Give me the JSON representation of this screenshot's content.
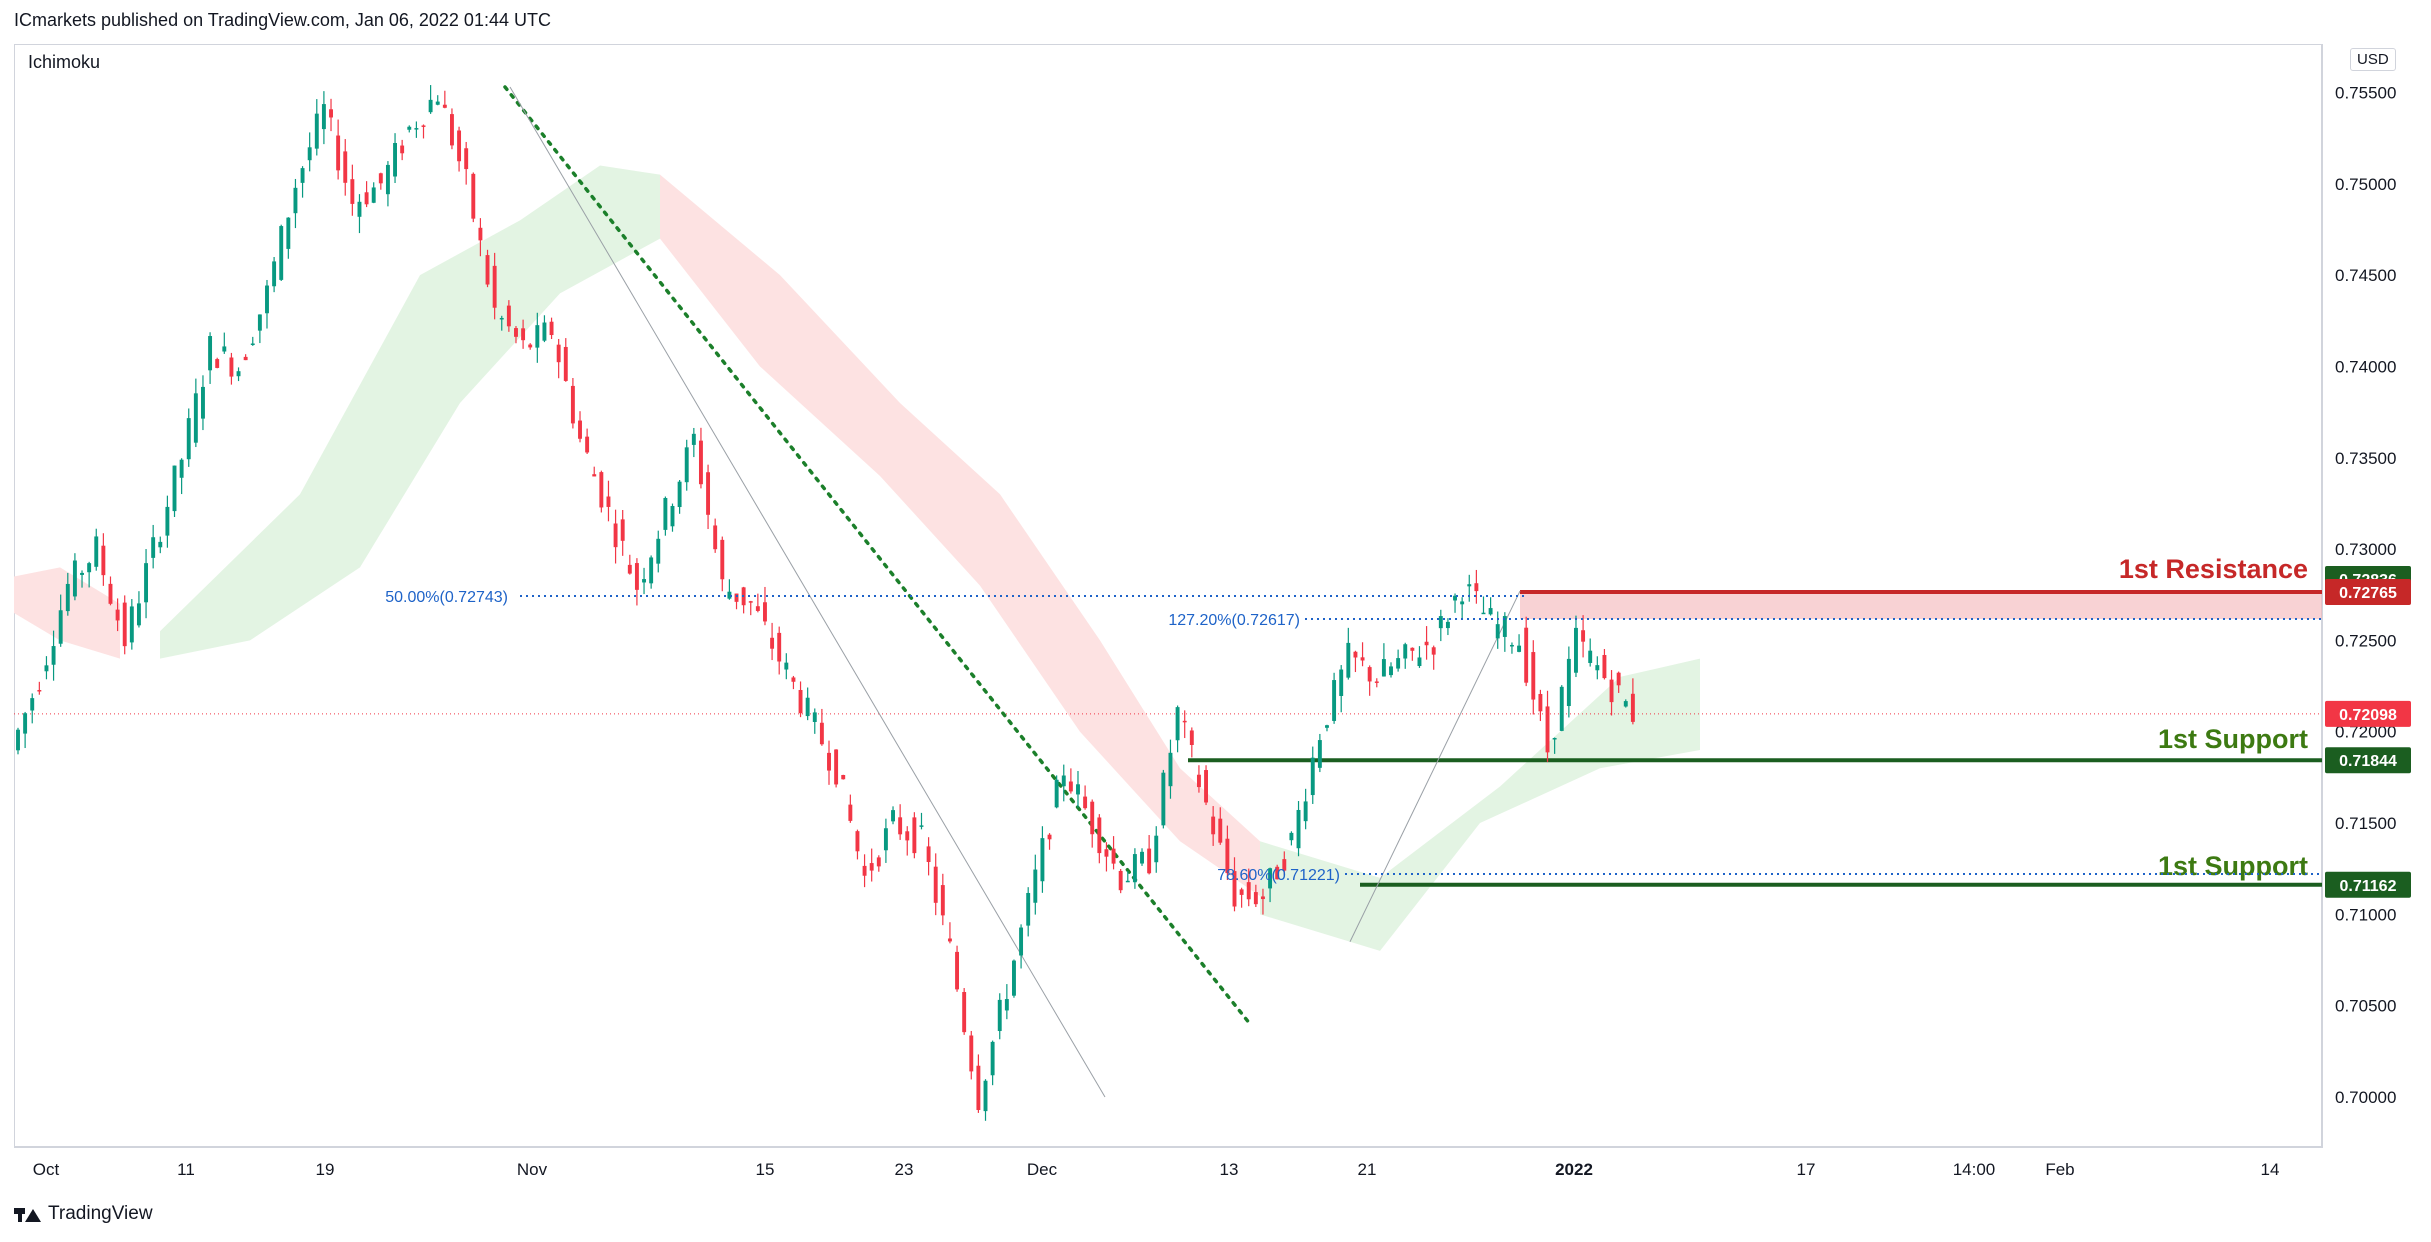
{
  "header": {
    "text": "ICmarkets published on TradingView.com, Jan 06, 2022 01:44 UTC"
  },
  "indicator": {
    "name": "Ichimoku"
  },
  "currency": "USD",
  "footer": {
    "brand": "TradingView",
    "logo_icon": "tradingview-logo-icon"
  },
  "colors": {
    "up": "#089981",
    "down": "#f23645",
    "ichimoku_bull": "#e3f4e3",
    "ichimoku_bear": "#fde2e2",
    "resistance": "#c62828",
    "support": "#1b5e20",
    "fib": "#1e63c8",
    "trend": "#1b7f2a",
    "current_price": "#f23645"
  },
  "chart_data": {
    "type": "candlestick",
    "symbol_currency": "USD",
    "ylim": [
      0.6995,
      0.756
    ],
    "y_ticks": [
      {
        "value": 0.755,
        "label": "0.75500"
      },
      {
        "value": 0.75,
        "label": "0.75000"
      },
      {
        "value": 0.745,
        "label": "0.74500"
      },
      {
        "value": 0.74,
        "label": "0.74000"
      },
      {
        "value": 0.735,
        "label": "0.73500"
      },
      {
        "value": 0.73,
        "label": "0.73000"
      },
      {
        "value": 0.725,
        "label": "0.72500"
      },
      {
        "value": 0.72,
        "label": "0.72000"
      },
      {
        "value": 0.715,
        "label": "0.71500"
      },
      {
        "value": 0.71,
        "label": "0.71000"
      },
      {
        "value": 0.705,
        "label": "0.70500"
      },
      {
        "value": 0.7,
        "label": "0.70000"
      }
    ],
    "x_ticks": [
      {
        "label": "Oct",
        "bold": false
      },
      {
        "label": "11",
        "bold": false
      },
      {
        "label": "19",
        "bold": false
      },
      {
        "label": "Nov",
        "bold": false
      },
      {
        "label": "15",
        "bold": false
      },
      {
        "label": "23",
        "bold": false
      },
      {
        "label": "Dec",
        "bold": false
      },
      {
        "label": "13",
        "bold": false
      },
      {
        "label": "21",
        "bold": false
      },
      {
        "label": "2022",
        "bold": true
      },
      {
        "label": "17",
        "bold": false
      },
      {
        "label": "14:00",
        "bold": false
      },
      {
        "label": "Feb",
        "bold": false
      },
      {
        "label": "14",
        "bold": false
      }
    ],
    "price_path": [
      [
        0.718,
        0.719
      ],
      [
        0.72,
        0.723
      ],
      [
        0.726,
        0.728
      ],
      [
        0.729,
        0.73
      ],
      [
        0.727,
        0.725
      ],
      [
        0.724,
        0.73
      ],
      [
        0.732,
        0.735
      ],
      [
        0.738,
        0.741
      ],
      [
        0.742,
        0.74
      ],
      [
        0.739,
        0.744
      ],
      [
        0.747,
        0.75
      ],
      [
        0.752,
        0.754
      ],
      [
        0.751,
        0.749
      ],
      [
        0.747,
        0.75
      ],
      [
        0.751,
        0.753
      ],
      [
        0.752,
        0.755
      ],
      [
        0.752,
        0.75
      ],
      [
        0.747,
        0.743
      ],
      [
        0.744,
        0.741
      ],
      [
        0.739,
        0.742
      ],
      [
        0.738,
        0.736
      ],
      [
        0.734,
        0.732
      ],
      [
        0.729,
        0.728
      ],
      [
        0.729,
        0.732
      ],
      [
        0.735,
        0.736
      ],
      [
        0.732,
        0.728
      ],
      [
        0.726,
        0.727
      ],
      [
        0.726,
        0.724
      ],
      [
        0.723,
        0.721
      ],
      [
        0.72,
        0.718
      ],
      [
        0.716,
        0.712
      ],
      [
        0.713,
        0.715
      ],
      [
        0.716,
        0.714
      ],
      [
        0.712,
        0.708
      ],
      [
        0.705,
        0.7
      ],
      [
        0.703,
        0.706
      ],
      [
        0.708,
        0.712
      ],
      [
        0.715,
        0.718
      ],
      [
        0.717,
        0.715
      ],
      [
        0.716,
        0.712
      ],
      [
        0.711,
        0.713
      ],
      [
        0.715,
        0.721
      ],
      [
        0.718,
        0.716
      ],
      [
        0.713,
        0.711
      ],
      [
        0.709,
        0.711
      ],
      [
        0.712,
        0.714
      ],
      [
        0.715,
        0.72
      ],
      [
        0.721,
        0.724
      ],
      [
        0.725,
        0.723
      ],
      [
        0.722,
        0.724
      ],
      [
        0.723,
        0.725
      ],
      [
        0.726,
        0.728
      ],
      [
        0.727,
        0.726
      ],
      [
        0.728,
        0.725
      ],
      [
        0.72,
        0.719
      ],
      [
        0.723,
        0.725
      ],
      [
        0.726,
        0.723
      ],
      [
        0.7209,
        0.721
      ]
    ],
    "levels": [
      {
        "name": "1st Resistance",
        "price": 0.72765,
        "zone_top": 0.72765,
        "zone_bottom": 0.72617,
        "axis_label": "0.72765",
        "color": "#c62828"
      },
      {
        "name": "1st Support",
        "price": 0.71844,
        "axis_label": "0.71844",
        "color": "#1b5e20"
      },
      {
        "name": "1st Support",
        "price": 0.71162,
        "axis_label": "0.71162",
        "color": "#1b5e20"
      }
    ],
    "fib_levels": [
      {
        "label": "50.00%(0.72743)",
        "price": 0.72743
      },
      {
        "label": "127.20%(0.72617)",
        "price": 0.72617
      },
      {
        "label": "78.60%(0.71221)",
        "price": 0.71221
      }
    ],
    "price_labels": [
      {
        "value": "0.72836",
        "price": 0.72836,
        "color": "#1b5e20"
      },
      {
        "value": "0.72765",
        "price": 0.72765,
        "color": "#c62828"
      },
      {
        "value": "0.72098",
        "price": 0.72098,
        "color": "#f23645"
      },
      {
        "value": "0.71844",
        "price": 0.71844,
        "color": "#1b5e20"
      },
      {
        "value": "0.71162",
        "price": 0.71162,
        "color": "#1b5e20"
      }
    ],
    "current_price": 0.72098,
    "grid": false,
    "legend": "none"
  }
}
